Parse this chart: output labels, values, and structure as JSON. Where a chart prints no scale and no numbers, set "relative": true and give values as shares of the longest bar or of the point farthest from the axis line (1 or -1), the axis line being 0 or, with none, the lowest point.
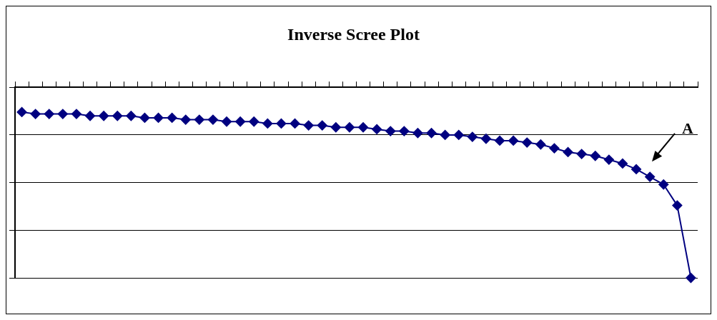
{
  "chart_data": {
    "type": "line",
    "title": "Inverse Scree Plot",
    "relative": true,
    "categories": [
      null,
      null,
      null,
      null,
      null,
      null,
      null,
      null,
      null,
      null,
      null,
      null,
      null,
      null,
      null,
      null,
      null,
      null,
      null,
      null,
      null,
      null,
      null,
      null,
      null,
      null,
      null,
      null,
      null,
      null,
      null,
      null,
      null,
      null,
      null,
      null,
      null,
      null,
      null,
      null,
      null,
      null,
      null,
      null,
      null,
      null,
      null,
      null,
      null,
      null
    ],
    "series": [
      {
        "color": "#000080",
        "values": [
          -0.13,
          -0.14,
          -0.14,
          -0.14,
          -0.14,
          -0.15,
          -0.15,
          -0.15,
          -0.15,
          -0.16,
          -0.16,
          -0.16,
          -0.17,
          -0.17,
          -0.17,
          -0.18,
          -0.18,
          -0.18,
          -0.19,
          -0.19,
          -0.19,
          -0.2,
          -0.2,
          -0.21,
          -0.21,
          -0.21,
          -0.22,
          -0.23,
          -0.23,
          -0.24,
          -0.24,
          -0.25,
          -0.25,
          -0.26,
          -0.27,
          -0.28,
          -0.28,
          -0.29,
          -0.3,
          -0.32,
          -0.34,
          -0.35,
          -0.36,
          -0.38,
          -0.4,
          -0.43,
          -0.47,
          -0.51,
          -0.62,
          -1
        ]
      }
    ],
    "annotations": [
      "A"
    ],
    "marker": "diamond",
    "grid": "y",
    "legend": false
  }
}
